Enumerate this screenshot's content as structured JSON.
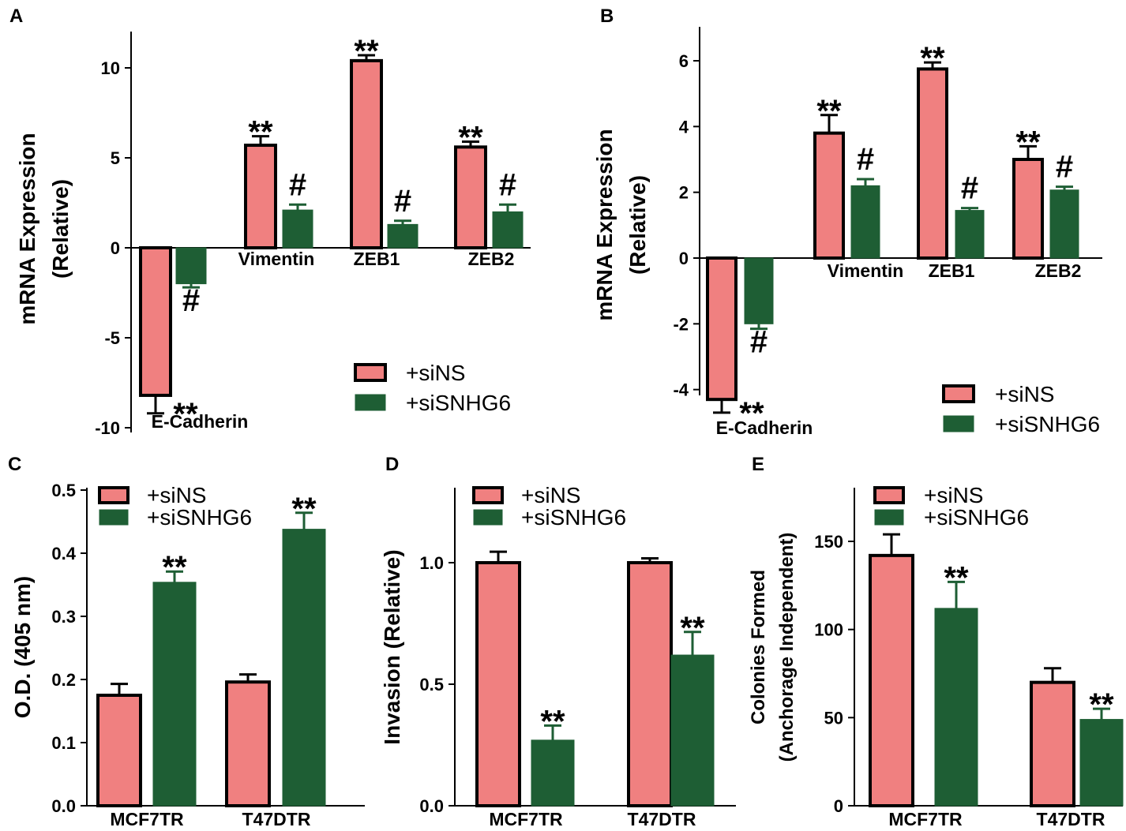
{
  "colors": {
    "siNS": "#f08080",
    "siSNHG6": "#1e5e34",
    "axis": "#000000"
  },
  "legend": {
    "siNS": "+siNS",
    "siSNHG6": "+siSNHG6"
  },
  "chart_data": [
    {
      "panel": "A",
      "type": "bar",
      "ylabel_line1": "mRNA Expression",
      "ylabel_line2": "(Relative)",
      "ylim": [
        -10,
        12.5
      ],
      "yticks": [
        -10,
        -5,
        0,
        5,
        10
      ],
      "categories": [
        "E-Cadherin",
        "Vimentin",
        "ZEB1",
        "ZEB2"
      ],
      "series": [
        {
          "name": "+siNS",
          "values": [
            -8.2,
            5.7,
            10.4,
            5.6
          ],
          "errors": [
            1.0,
            0.5,
            0.3,
            0.3
          ]
        },
        {
          "name": "+siSNHG6",
          "values": [
            -2.0,
            2.1,
            1.3,
            2.0
          ],
          "errors": [
            0.2,
            0.3,
            0.2,
            0.4
          ]
        }
      ],
      "annotations": [
        [
          "**",
          "#"
        ],
        [
          "**",
          "#"
        ],
        [
          "**",
          "#"
        ],
        [
          "**",
          "#"
        ]
      ],
      "legend_position": "bottom-right"
    },
    {
      "panel": "B",
      "type": "bar",
      "ylabel_line1": "mRNA Expression",
      "ylabel_line2": "(Relative)",
      "ylim": [
        -5,
        7
      ],
      "yticks": [
        -4,
        -2,
        0,
        2,
        4,
        6
      ],
      "categories": [
        "E-Cadherin",
        "Vimentin",
        "ZEB1",
        "ZEB2"
      ],
      "series": [
        {
          "name": "+siNS",
          "values": [
            -4.3,
            3.8,
            5.75,
            3.0
          ],
          "errors": [
            0.4,
            0.55,
            0.2,
            0.4
          ]
        },
        {
          "name": "+siSNHG6",
          "values": [
            -2.0,
            2.2,
            1.45,
            2.07
          ],
          "errors": [
            0.15,
            0.2,
            0.07,
            0.1
          ]
        }
      ],
      "annotations": [
        [
          "**",
          "#"
        ],
        [
          "**",
          "#"
        ],
        [
          "**",
          "#"
        ],
        [
          "**",
          "#"
        ]
      ],
      "legend_position": "bottom-right"
    },
    {
      "panel": "C",
      "type": "bar",
      "ylabel_line1": "O.D. (405 nm)",
      "ylim": [
        0,
        0.5
      ],
      "yticks": [
        0.0,
        0.1,
        0.2,
        0.3,
        0.4,
        0.5
      ],
      "tick_labels": [
        "0.0",
        "0.1",
        "0.2",
        "0.3",
        "0.4",
        "0.5"
      ],
      "categories": [
        "MCF7TR",
        "T47DTR"
      ],
      "series": [
        {
          "name": "+siNS",
          "values": [
            0.175,
            0.196
          ],
          "errors": [
            0.018,
            0.012
          ]
        },
        {
          "name": "+siSNHG6",
          "values": [
            0.354,
            0.438
          ],
          "errors": [
            0.017,
            0.026
          ]
        }
      ],
      "annotations": [
        [
          "",
          "**"
        ],
        [
          "",
          "**"
        ]
      ],
      "legend_position": "top-left"
    },
    {
      "panel": "D",
      "type": "bar",
      "ylabel_line1": "Invasion (Relative)",
      "ylim": [
        0,
        1.3
      ],
      "yticks": [
        0.0,
        0.5,
        1.0
      ],
      "tick_labels": [
        "0.0",
        "0.5",
        "1.0"
      ],
      "categories": [
        "MCF7TR",
        "T47DTR"
      ],
      "series": [
        {
          "name": "+siNS",
          "values": [
            1.0,
            1.0
          ],
          "errors": [
            0.045,
            0.018
          ]
        },
        {
          "name": "+siSNHG6",
          "values": [
            0.27,
            0.62
          ],
          "errors": [
            0.06,
            0.095
          ]
        }
      ],
      "annotations": [
        [
          "",
          "**"
        ],
        [
          "",
          "**"
        ]
      ],
      "legend_position": "top-left"
    },
    {
      "panel": "E",
      "type": "bar",
      "ylabel_line1": "Colonies Formed",
      "ylabel_line2": "(Anchorage Independent)",
      "ylim": [
        0,
        170
      ],
      "yticks": [
        0,
        50,
        100,
        150
      ],
      "categories": [
        "MCF7TR",
        "T47DTR"
      ],
      "series": [
        {
          "name": "+siNS",
          "values": [
            142,
            70
          ],
          "errors": [
            12,
            8
          ]
        },
        {
          "name": "+siSNHG6",
          "values": [
            112,
            49
          ],
          "errors": [
            15,
            6
          ]
        }
      ],
      "annotations": [
        [
          "",
          "**"
        ],
        [
          "",
          "**"
        ]
      ],
      "legend_position": "top-left"
    }
  ]
}
